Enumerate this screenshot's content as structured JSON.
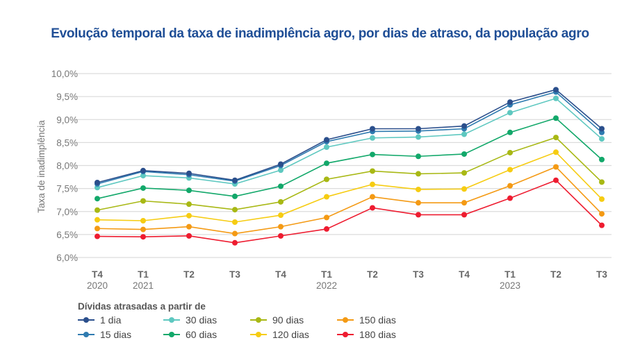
{
  "chart_data": {
    "type": "line",
    "title": "Evolução temporal da taxa de inadimplência agro, por dias de atraso, da população agro",
    "ylabel": "Taxa de inadimplência",
    "xlabel": "",
    "categories": [
      {
        "q": "T4",
        "y": "2020"
      },
      {
        "q": "T1",
        "y": "2021"
      },
      {
        "q": "T2",
        "y": ""
      },
      {
        "q": "T3",
        "y": ""
      },
      {
        "q": "T4",
        "y": ""
      },
      {
        "q": "T1",
        "y": "2022"
      },
      {
        "q": "T2",
        "y": ""
      },
      {
        "q": "T3",
        "y": ""
      },
      {
        "q": "T4",
        "y": ""
      },
      {
        "q": "T1",
        "y": "2023"
      },
      {
        "q": "T2",
        "y": ""
      },
      {
        "q": "T3",
        "y": ""
      }
    ],
    "ylim": [
      6.0,
      10.0
    ],
    "yticks": [
      "6,0%",
      "6,5%",
      "7,0%",
      "7,5%",
      "8,0%",
      "8,5%",
      "9,0%",
      "9,5%",
      "10,0%"
    ],
    "grid": true,
    "legend_title": "Dívidas atrasadas a partir de",
    "legend_placement": "bottom",
    "series": [
      {
        "name": "1 dia",
        "color": "#2b4f8c",
        "values": [
          7.63,
          7.89,
          7.83,
          7.68,
          8.03,
          8.56,
          8.8,
          8.8,
          8.86,
          9.38,
          9.65,
          8.8
        ]
      },
      {
        "name": "15 dias",
        "color": "#2f7bb0",
        "values": [
          7.6,
          7.87,
          7.8,
          7.66,
          8.0,
          8.52,
          8.74,
          8.75,
          8.8,
          9.32,
          9.6,
          8.72
        ]
      },
      {
        "name": "30 dias",
        "color": "#5ec8c0",
        "values": [
          7.52,
          7.78,
          7.73,
          7.6,
          7.9,
          8.4,
          8.6,
          8.62,
          8.68,
          9.15,
          9.46,
          8.58
        ]
      },
      {
        "name": "60 dias",
        "color": "#12a86a",
        "values": [
          7.28,
          7.51,
          7.46,
          7.33,
          7.55,
          8.05,
          8.24,
          8.2,
          8.25,
          8.72,
          9.03,
          8.13
        ]
      },
      {
        "name": "90 dias",
        "color": "#a8b814",
        "values": [
          7.03,
          7.23,
          7.16,
          7.04,
          7.21,
          7.7,
          7.88,
          7.82,
          7.84,
          8.28,
          8.61,
          7.64
        ]
      },
      {
        "name": "120 dias",
        "color": "#f6cc12",
        "values": [
          6.82,
          6.8,
          6.91,
          6.77,
          6.92,
          7.32,
          7.59,
          7.48,
          7.49,
          7.91,
          8.29,
          7.27
        ]
      },
      {
        "name": "150 dias",
        "color": "#f49a14",
        "values": [
          6.63,
          6.61,
          6.67,
          6.52,
          6.67,
          6.87,
          7.32,
          7.19,
          7.19,
          7.56,
          7.97,
          6.95
        ]
      },
      {
        "name": "180 dias",
        "color": "#ee1c30",
        "values": [
          6.46,
          6.45,
          6.47,
          6.32,
          6.47,
          6.62,
          7.08,
          6.93,
          6.93,
          7.29,
          7.68,
          6.7
        ]
      }
    ]
  }
}
